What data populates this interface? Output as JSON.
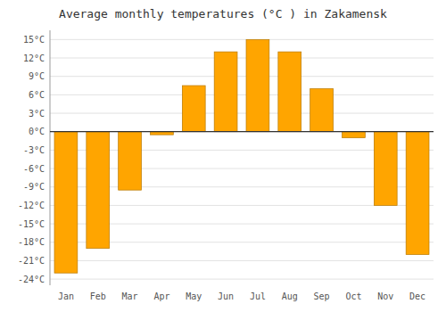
{
  "chart_data": {
    "type": "bar",
    "title": "Average monthly temperatures (°C ) in Zakamensk",
    "categories": [
      "Jan",
      "Feb",
      "Mar",
      "Apr",
      "May",
      "Jun",
      "Jul",
      "Aug",
      "Sep",
      "Oct",
      "Nov",
      "Dec"
    ],
    "values": [
      -23,
      -19,
      -9.5,
      -0.5,
      7.5,
      13,
      15,
      13,
      7,
      -1,
      -12,
      -20
    ],
    "color": "#ffa500",
    "ylim": [
      -25,
      16.5
    ],
    "yticks": [
      {
        "value": -24,
        "label": "-24°C"
      },
      {
        "value": -21,
        "label": "-21°C"
      },
      {
        "value": -18,
        "label": "-18°C"
      },
      {
        "value": -15,
        "label": "-15°C"
      },
      {
        "value": -12,
        "label": "-12°C"
      },
      {
        "value": -9,
        "label": "-9°C"
      },
      {
        "value": -6,
        "label": "-6°C"
      },
      {
        "value": -3,
        "label": "-3°C"
      },
      {
        "value": 0,
        "label": "0°C"
      },
      {
        "value": 3,
        "label": "3°C"
      },
      {
        "value": 6,
        "label": "6°C"
      },
      {
        "value": 9,
        "label": "9°C"
      },
      {
        "value": 12,
        "label": "12°C"
      },
      {
        "value": 15,
        "label": "15°C"
      }
    ],
    "grid": true
  }
}
